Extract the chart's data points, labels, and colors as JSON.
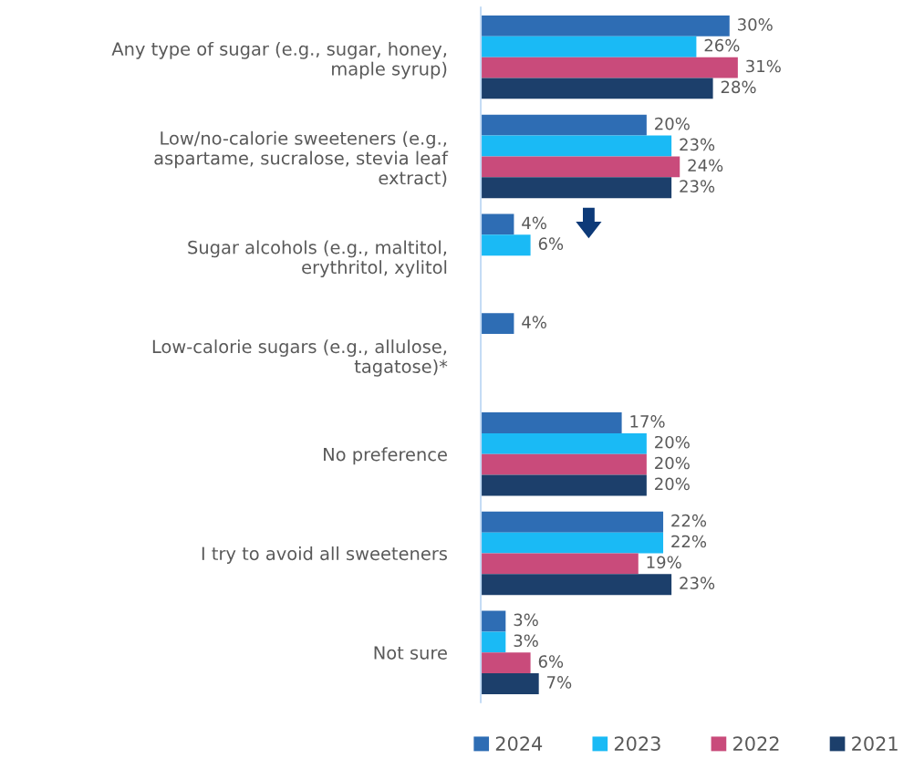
{
  "chart_data": {
    "type": "bar",
    "orientation": "horizontal",
    "categories": [
      "Any type of sugar (e.g., sugar, honey,\nmaple syrup)",
      "Low/no-calorie sweeteners (e.g.,\naspartame, sucralose, stevia leaf\nextract)",
      "Sugar alcohols (e.g., maltitol,\nerythritol, xylitol",
      "Low-calorie sugars (e.g., allulose,\ntagatose)*",
      "No preference",
      "I try to avoid all sweeteners",
      "Not sure"
    ],
    "series": [
      {
        "name": "2024",
        "color": "#2e6db4",
        "values": [
          30,
          20,
          4,
          4,
          17,
          22,
          3
        ],
        "value_labels": [
          "30%",
          "20%",
          "4%",
          "4%",
          "17%",
          "22%",
          "3%"
        ]
      },
      {
        "name": "2023",
        "color": "#1abaf5",
        "values": [
          26,
          23,
          6,
          null,
          20,
          22,
          3
        ],
        "value_labels": [
          "26%",
          "23%",
          "6%",
          null,
          "20%",
          "22%",
          "3%"
        ]
      },
      {
        "name": "2022",
        "color": "#c94b7b",
        "values": [
          31,
          24,
          null,
          null,
          20,
          19,
          6
        ],
        "value_labels": [
          "31%",
          "24%",
          null,
          null,
          "20%",
          "19%",
          "6%"
        ]
      },
      {
        "name": "2021",
        "color": "#1c3f6b",
        "values": [
          28,
          23,
          null,
          null,
          20,
          23,
          7
        ],
        "value_labels": [
          "28%",
          "23%",
          null,
          null,
          "20%",
          "23%",
          "7%"
        ]
      }
    ],
    "legend": "bottom",
    "grid": false,
    "tick_labels": "y"
  }
}
